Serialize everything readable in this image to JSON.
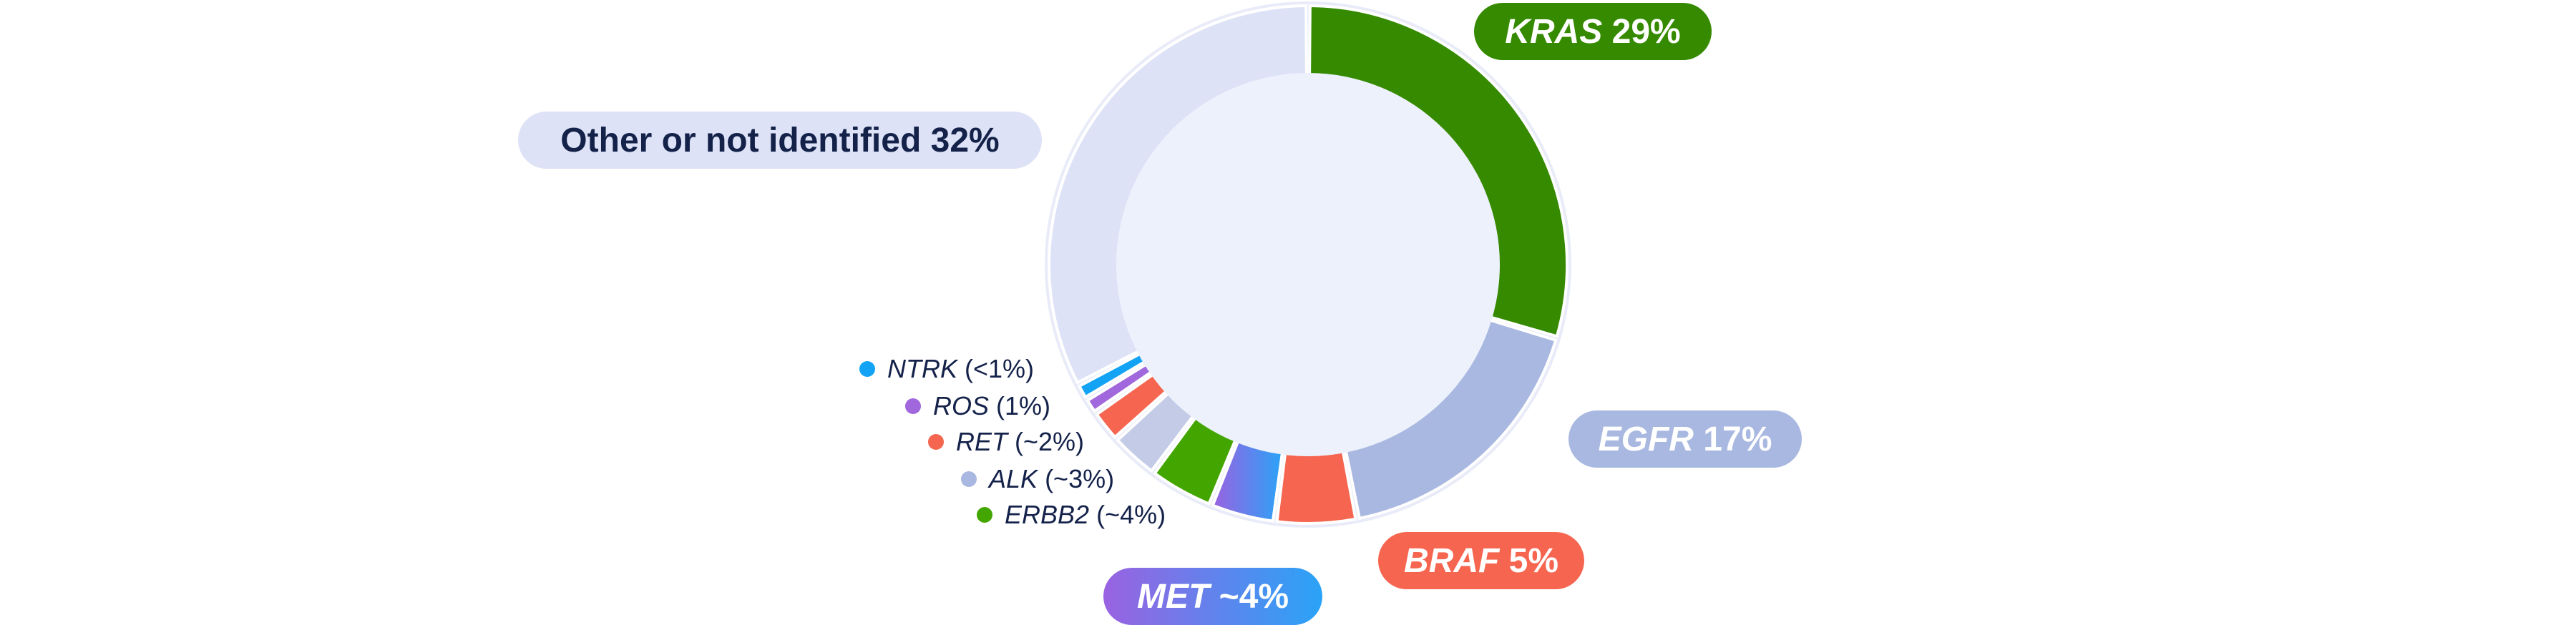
{
  "chart_data": {
    "type": "pie",
    "title": "",
    "center_color": "#edf1fc",
    "segments": [
      {
        "name": "KRAS",
        "value_label": "29%",
        "value": 29,
        "color": "#358a00",
        "text_color": "#ffffff"
      },
      {
        "name": "EGFR",
        "value_label": "17%",
        "value": 17,
        "color": "#a9b8e0",
        "text_color": "#ffffff"
      },
      {
        "name": "BRAF",
        "value_label": "5%",
        "value": 5,
        "color": "#f6654f",
        "text_color": "#ffffff"
      },
      {
        "name": "MET",
        "value_label": "~4%",
        "value": 4,
        "color": "#2aa3f7",
        "color_start": "#9a62e1",
        "text_color": "#ffffff"
      },
      {
        "name": "ERBB2",
        "value_label": "(~4%)",
        "value": 4,
        "color": "#43a600"
      },
      {
        "name": "ALK",
        "value_label": "(~3%)",
        "value": 3,
        "color": "#c3cbe6"
      },
      {
        "name": "RET",
        "value_label": "(~2%)",
        "value": 2,
        "color": "#f6654f"
      },
      {
        "name": "ROS",
        "value_label": "(1%)",
        "value": 1,
        "color": "#a167dc"
      },
      {
        "name": "NTRK",
        "value_label": "(<1%)",
        "value": 1,
        "color": "#13a3f5"
      },
      {
        "name": "Other or not identified",
        "value_label": "32%",
        "value": 32,
        "color": "#dde2f6",
        "text_color": "#14224a"
      }
    ]
  }
}
